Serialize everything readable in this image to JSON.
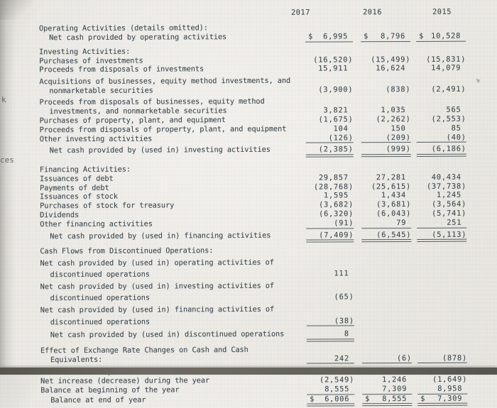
{
  "document": {
    "header": {
      "years": [
        "2017",
        "2016",
        "2015"
      ]
    },
    "rows": [
      {
        "label": "Operating Activities (details omitted):",
        "indent": 0
      },
      {
        "label": "Net cash provided by operating activities",
        "indent": 1,
        "values": [
          "6,995",
          "8,796",
          "10,528"
        ],
        "dollar": true,
        "rule": "single"
      },
      {
        "label": "Investing Activities:",
        "indent": 0,
        "gap": 2
      },
      {
        "label": "Purchases of investments",
        "indent": 0,
        "values": [
          "(16,520)",
          "(15,499)",
          "(15,831)"
        ]
      },
      {
        "label": "Proceeds from disposals of investments",
        "indent": 0,
        "values": [
          "15,911",
          "16,624",
          "14,079"
        ]
      },
      {
        "label": "Acquisitions of businesses, equity method investments, and",
        "indent": 0
      },
      {
        "label": "nonmarketable securities",
        "indent": 1,
        "values": [
          "(3,900)",
          "(838)",
          "(2,491)"
        ]
      },
      {
        "label": "Proceeds from disposals of businesses, equity method",
        "indent": 0
      },
      {
        "label": "investments, and nonmarketable securities",
        "indent": 1,
        "values": [
          "3,821",
          "1,035",
          "565"
        ]
      },
      {
        "label": "Purchases of property, plant, and equipment",
        "indent": 0,
        "values": [
          "(1,675)",
          "(2,262)",
          "(2,553)"
        ]
      },
      {
        "label": "Proceeds from disposals of property, plant, and equipment",
        "indent": 0,
        "values": [
          "104",
          "150",
          "85"
        ]
      },
      {
        "label": "Other investing activities",
        "indent": 0,
        "values": [
          "(126)",
          "(209)",
          "(40)"
        ],
        "rule": "single"
      },
      {
        "label": "Net cash provided by (used in) investing activities",
        "indent": 1,
        "values": [
          "(2,385)",
          "(999)",
          "(6,186)"
        ],
        "rule": "double",
        "gap": 3
      },
      {
        "label": "Financing Activities:",
        "indent": 0,
        "gap": 6
      },
      {
        "label": "Issuances of debt",
        "indent": 0,
        "values": [
          "29,857",
          "27,281",
          "40,434"
        ]
      },
      {
        "label": "Payments of debt",
        "indent": 0,
        "values": [
          "(28,768)",
          "(25,615)",
          "(37,738)"
        ]
      },
      {
        "label": "Issuances of stock",
        "indent": 0,
        "values": [
          "1,595",
          "1,434",
          "1,245"
        ]
      },
      {
        "label": "Purchases of stock for treasury",
        "indent": 0,
        "values": [
          "(3,682)",
          "(3,681)",
          "(3,564)"
        ]
      },
      {
        "label": "Dividends",
        "indent": 0,
        "values": [
          "(6,320)",
          "(6,043)",
          "(5,741)"
        ]
      },
      {
        "label": "Other financing activities",
        "indent": 0,
        "values": [
          "(91)",
          "79",
          "251"
        ],
        "rule": "single"
      },
      {
        "label": "Net cash provided by (used in) financing activities",
        "indent": 1,
        "values": [
          "(7,409)",
          "(6,545)",
          "(5,113)"
        ],
        "rule": "double",
        "gap": 3
      },
      {
        "label": "Cash Flows from Discontinued Operations:",
        "indent": 0,
        "gap": 1
      },
      {
        "label": "Net cash provided by (used in) operating activities of",
        "indent": 0
      },
      {
        "label": "discontinued operations",
        "indent": 1,
        "values": [
          "111",
          "",
          ""
        ]
      },
      {
        "label": "Net cash provided by (used in) investing activities of",
        "indent": 0
      },
      {
        "label": "discontinued operations",
        "indent": 1,
        "values": [
          "(65)",
          "",
          ""
        ]
      },
      {
        "label": "Net cash provided by (used in) financing activities of",
        "indent": 0
      },
      {
        "label": "discontinued operations",
        "indent": 1,
        "values": [
          "(38)",
          "",
          ""
        ],
        "rule": "single"
      },
      {
        "label": "Net cash provided by (used in) discontinued operations",
        "indent": 1,
        "values": [
          "8",
          "",
          ""
        ],
        "rule": "double",
        "gap": 1
      },
      {
        "label": "Effect of Exchange Rate Changes on Cash and Cash",
        "indent": 0,
        "gap": 1
      },
      {
        "label": "Equivalents:",
        "indent": 1,
        "values": [
          "242",
          "(6)",
          "(878)"
        ],
        "rule": "single"
      },
      {
        "label": "Cash and Cash Equivalents:",
        "indent": 0
      },
      {
        "label": "Net increase (decrease) during the year",
        "indent": 0,
        "values": [
          "(2,549)",
          "1,246",
          "(1,649)"
        ]
      },
      {
        "label": "Balance at beginning of the year",
        "indent": 0,
        "values": [
          "8,555",
          "7,309",
          "8,958"
        ],
        "rule": "single"
      },
      {
        "label": "Balance at end of year",
        "indent": 1,
        "values": [
          "6,006",
          "8,555",
          "7,309"
        ],
        "dollar": true,
        "rule": "double"
      }
    ]
  },
  "artifacts": {
    "edge_fragments": [
      {
        "text": "k"
      },
      {
        "text": "ces"
      }
    ]
  },
  "colors": {
    "paper": "#e9e7e2",
    "ink": "#414c53",
    "rule": "#565d61",
    "edge_shadow": "#56544d"
  }
}
